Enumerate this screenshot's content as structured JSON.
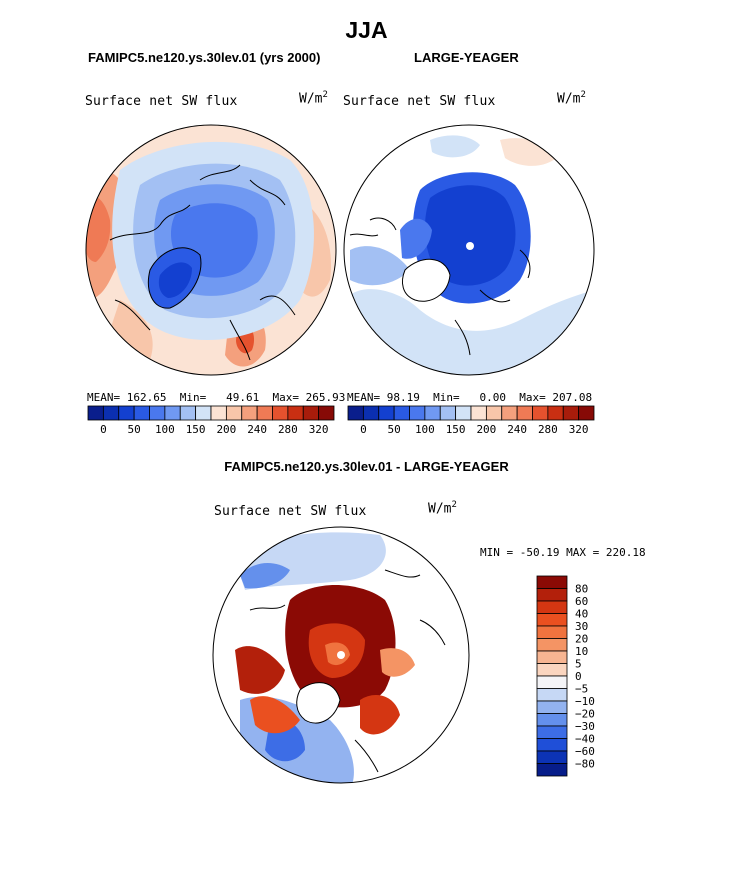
{
  "title": "JJA",
  "panels": [
    {
      "title": "FAMIPC5.ne120.ys.30lev.01 (yrs 2000)",
      "variable": "Surface net SW flux",
      "units": "W/m",
      "units_sup": "2",
      "stats": {
        "mean_label": "MEAN=",
        "mean": "162.65",
        "min_label": "Min=",
        "min": "49.61",
        "max_label": "Max=",
        "max": "265.93"
      }
    },
    {
      "title": "LARGE-YEAGER",
      "variable": "Surface net SW flux",
      "units": "W/m",
      "units_sup": "2",
      "stats": {
        "mean_label": "MEAN=",
        "mean": "98.19",
        "min_label": "Min=",
        "min": "0.00",
        "max_label": "Max=",
        "max": "207.08"
      }
    }
  ],
  "difference": {
    "title": "FAMIPC5.ne120.ys.30lev.01 - LARGE-YEAGER",
    "variable": "Surface net SW flux",
    "units": "W/m",
    "units_sup": "2",
    "minmax_text": "MIN = -50.19 MAX = 220.18"
  },
  "chart_data": [
    {
      "type": "heatmap",
      "projection": "north-polar-stereographic",
      "title": "FAMIPC5.ne120.ys.30lev.01 (yrs 2000)",
      "variable": "Surface net SW flux",
      "units": "W/m2",
      "mean": 162.65,
      "min": 49.61,
      "max": 265.93,
      "colorbar": {
        "orientation": "horizontal",
        "tick_labels": [
          "0",
          "50",
          "100",
          "150",
          "200",
          "240",
          "280",
          "320"
        ],
        "colors": [
          "#0a1e8c",
          "#0b2fb0",
          "#1340d0",
          "#2a5ae4",
          "#4a78ee",
          "#7099f2",
          "#a3c0f3",
          "#d2e3f7",
          "#fbe3d4",
          "#f8c6aa",
          "#f4a07d",
          "#ef7a55",
          "#e5522e",
          "#c92f12",
          "#a81c0b",
          "#870a06"
        ]
      }
    },
    {
      "type": "heatmap",
      "projection": "north-polar-stereographic",
      "title": "LARGE-YEAGER",
      "variable": "Surface net SW flux",
      "units": "W/m2",
      "mean": 98.19,
      "min": 0.0,
      "max": 207.08,
      "colorbar": {
        "orientation": "horizontal",
        "tick_labels": [
          "0",
          "50",
          "100",
          "150",
          "200",
          "240",
          "280",
          "320"
        ],
        "colors": [
          "#0a1e8c",
          "#0b2fb0",
          "#1340d0",
          "#2a5ae4",
          "#4a78ee",
          "#7099f2",
          "#a3c0f3",
          "#d2e3f7",
          "#fbe3d4",
          "#f8c6aa",
          "#f4a07d",
          "#ef7a55",
          "#e5522e",
          "#c92f12",
          "#a81c0b",
          "#870a06"
        ]
      }
    },
    {
      "type": "heatmap",
      "projection": "north-polar-stereographic",
      "title": "FAMIPC5.ne120.ys.30lev.01 - LARGE-YEAGER",
      "variable": "Surface net SW flux",
      "units": "W/m2",
      "min": -50.19,
      "max": 220.18,
      "colorbar": {
        "orientation": "vertical",
        "tick_labels": [
          "80",
          "60",
          "40",
          "30",
          "20",
          "10",
          "5",
          "0",
          "−5",
          "−10",
          "−20",
          "−30",
          "−40",
          "−60",
          "−80"
        ],
        "colors": [
          "#8b0a05",
          "#b3200b",
          "#d43612",
          "#ea5020",
          "#f0733f",
          "#f49464",
          "#f7b592",
          "#fad5bf",
          "#f4f4f7",
          "#c6d8f5",
          "#93b3f0",
          "#6490ec",
          "#3d6de6",
          "#1f4fd8",
          "#0c33b5",
          "#071d8a"
        ]
      }
    }
  ]
}
